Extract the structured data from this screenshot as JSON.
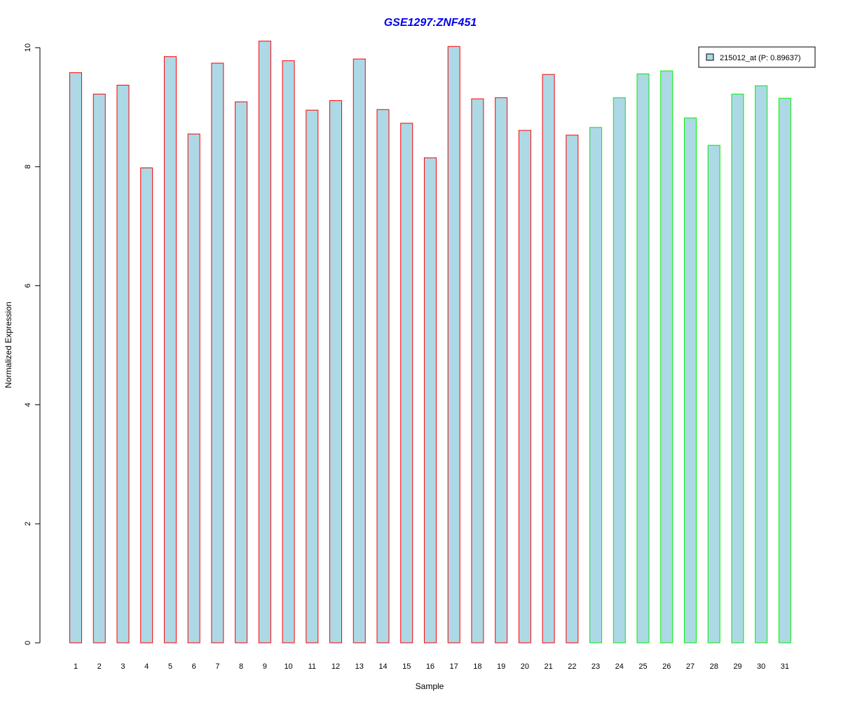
{
  "chart_data": {
    "type": "bar",
    "title": "GSE1297:ZNF451",
    "title_color": "#0000ee",
    "xlabel": "Sample",
    "ylabel": "Normalized Expression",
    "ylim": [
      0,
      10
    ],
    "yticks": [
      0,
      2,
      4,
      6,
      8,
      10
    ],
    "grid": false,
    "legend_position": "top-right",
    "bar_fill": "#add8e6",
    "categories": [
      "1",
      "2",
      "3",
      "4",
      "5",
      "6",
      "7",
      "8",
      "9",
      "10",
      "11",
      "12",
      "13",
      "14",
      "15",
      "16",
      "17",
      "18",
      "19",
      "20",
      "21",
      "22",
      "23",
      "24",
      "25",
      "26",
      "27",
      "28",
      "29",
      "30",
      "31"
    ],
    "series": [
      {
        "name": "215012_at (P: 0.89637)",
        "values": [
          9.58,
          9.22,
          9.37,
          7.98,
          9.85,
          8.55,
          9.74,
          9.09,
          10.11,
          9.78,
          8.95,
          9.11,
          9.81,
          8.96,
          8.73,
          8.15,
          10.02,
          9.14,
          9.16,
          8.61,
          9.55,
          8.53,
          8.66,
          9.16,
          9.56,
          9.61,
          8.82,
          8.36,
          9.22,
          9.36,
          9.15
        ]
      }
    ],
    "group_border_colors": [
      "#ff0000",
      "#ff0000",
      "#ff0000",
      "#ff0000",
      "#ff0000",
      "#ff0000",
      "#ff0000",
      "#ff0000",
      "#ff0000",
      "#ff0000",
      "#ff0000",
      "#ff0000",
      "#ff0000",
      "#ff0000",
      "#ff0000",
      "#ff0000",
      "#ff0000",
      "#ff0000",
      "#ff0000",
      "#ff0000",
      "#ff0000",
      "#ff0000",
      "#00ee00",
      "#00ee00",
      "#00ee00",
      "#00ee00",
      "#00ee00",
      "#00ee00",
      "#00ee00",
      "#00ee00",
      "#00ee00"
    ]
  }
}
